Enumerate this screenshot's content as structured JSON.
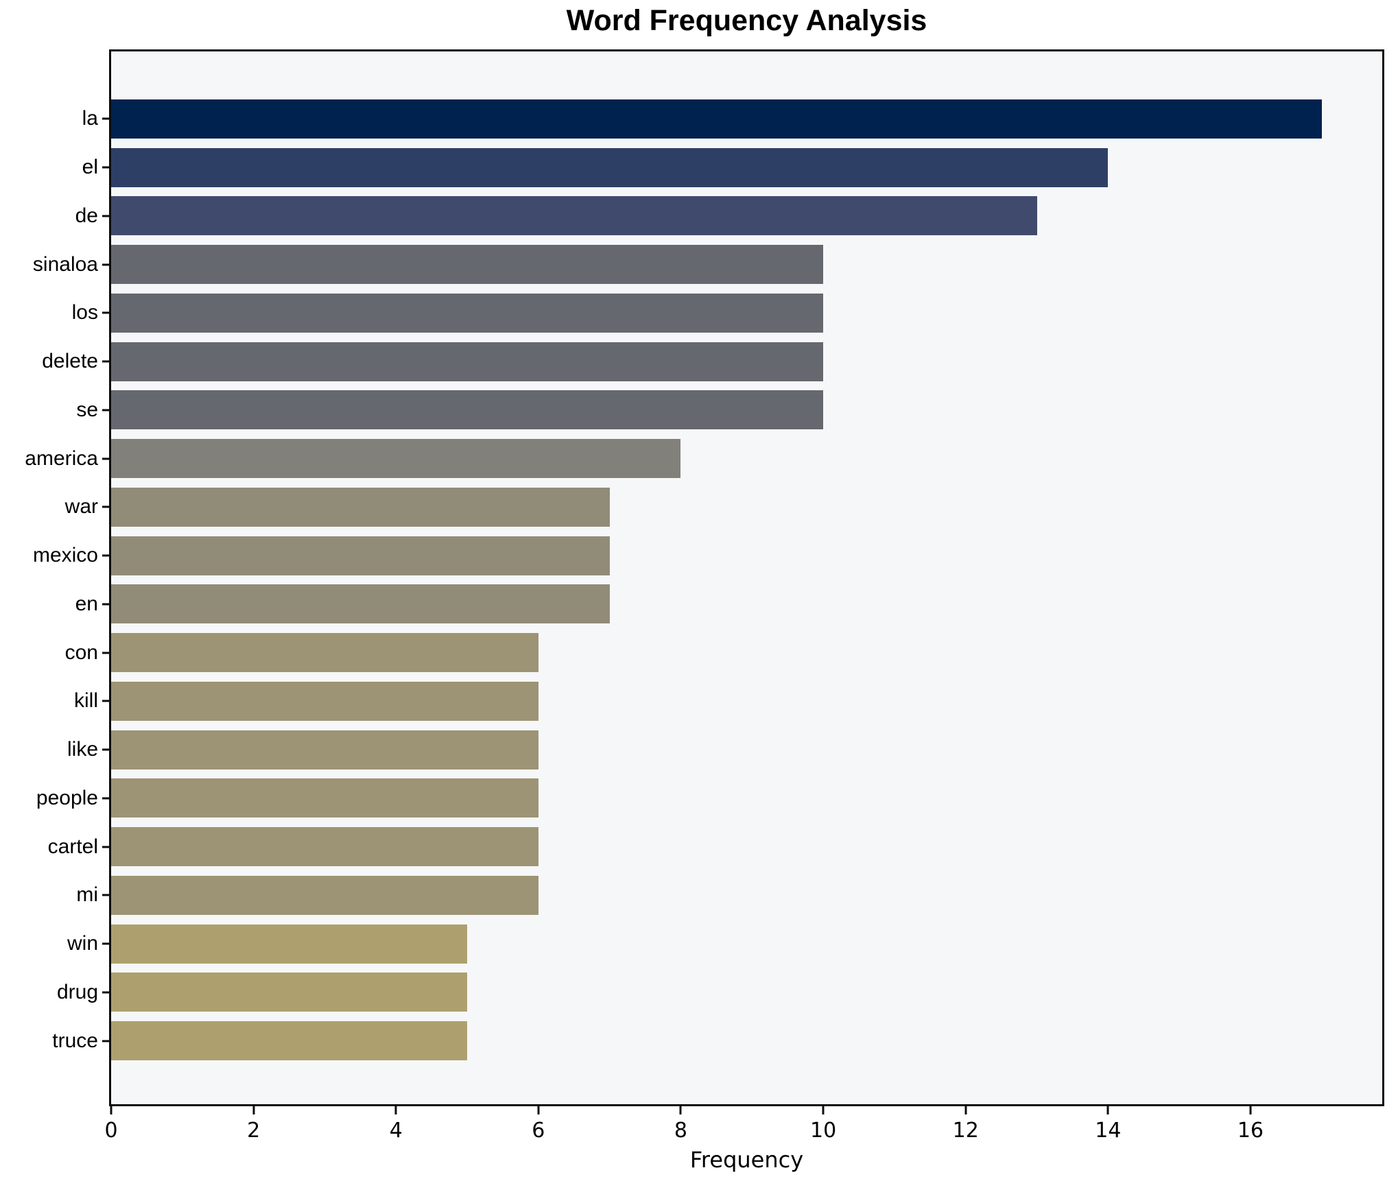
{
  "figure": {
    "title": "Word Frequency Analysis",
    "xlabel": "Frequency"
  },
  "chart_data": {
    "type": "bar",
    "orientation": "horizontal",
    "title": "Word Frequency Analysis",
    "xlabel": "Frequency",
    "ylabel": "",
    "categories": [
      "la",
      "el",
      "de",
      "sinaloa",
      "los",
      "delete",
      "se",
      "america",
      "war",
      "mexico",
      "en",
      "con",
      "kill",
      "like",
      "people",
      "cartel",
      "mi",
      "win",
      "drug",
      "truce"
    ],
    "values": [
      17,
      14,
      13,
      10,
      10,
      10,
      10,
      8,
      7,
      7,
      7,
      6,
      6,
      6,
      6,
      6,
      6,
      5,
      5,
      5
    ],
    "bar_colors": [
      "#00224e",
      "#2e3f66",
      "#404a6c",
      "#66686f",
      "#66686f",
      "#66686f",
      "#66686f",
      "#82807a",
      "#918c78",
      "#918c78",
      "#918c78",
      "#9c9474",
      "#9c9474",
      "#9c9474",
      "#9c9474",
      "#9c9474",
      "#9c9474",
      "#ada06e",
      "#ada06e",
      "#ada06e"
    ],
    "xlim": [
      0,
      17.85
    ],
    "xticks": [
      0,
      2,
      4,
      6,
      8,
      10,
      12,
      14,
      16
    ],
    "grid": false,
    "legend": null,
    "colormap": "cividis",
    "colors": {
      "plot_bg": "#f6f7f8",
      "figure_bg": "#ffffff",
      "spine": "#0d0d0d",
      "text": "#000000"
    }
  }
}
